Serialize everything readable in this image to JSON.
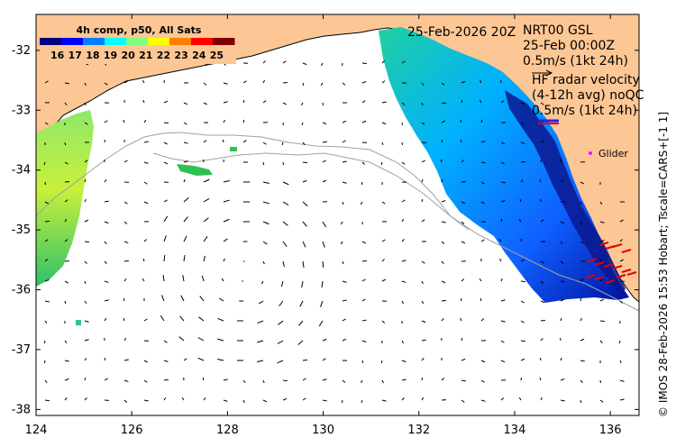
{
  "chart_data": {
    "type": "map",
    "title": "4h comp, p50, All Sats",
    "date_label": "25-Feb-2026 20Z",
    "xlim": [
      124,
      136.6
    ],
    "ylim": [
      -38.1,
      -31.4
    ],
    "x_ticks": [
      124,
      126,
      128,
      130,
      132,
      134,
      136
    ],
    "y_ticks": [
      -32,
      -33,
      -34,
      -35,
      -36,
      -37,
      -38
    ],
    "colorbar": {
      "min": 15,
      "max": 26,
      "ticks": [
        16,
        17,
        18,
        19,
        20,
        21,
        22,
        23,
        24,
        25
      ],
      "colors": [
        "#00007f",
        "#0000ff",
        "#0080ff",
        "#00ffff",
        "#80ff80",
        "#ffff00",
        "#ff8000",
        "#ff0000",
        "#7f0000"
      ]
    },
    "legend": {
      "model_label_1": "NRT00 GSL",
      "model_label_2": "25-Feb 00:00Z",
      "model_scale": "0.5m/s (1kt 24h)",
      "radar_label_1": "HF radar velocity",
      "radar_label_2": "(4-12h avg) noQC",
      "radar_scale": "0.5m/s (1kt 24h)",
      "glider_label": "Glider"
    },
    "credit": "© IMOS 28-Feb-2026 15:53 Hobart; Tscale=CARS+[-1 1]"
  },
  "colors": {
    "land": "#fdc795",
    "sea": "#ffffff",
    "coast": "#000000",
    "isobath": "#a0a0a0",
    "radar_arrow": "#e00000",
    "glider": "#ff00ff"
  }
}
